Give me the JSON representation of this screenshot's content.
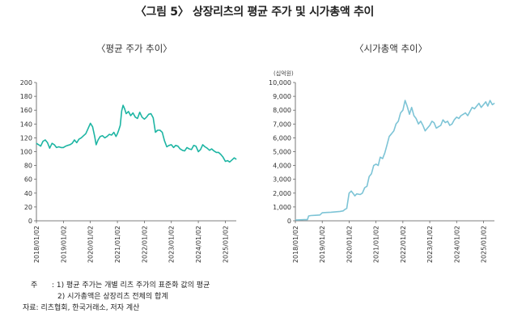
{
  "figure_title": "〈그림 5〉 상장리츠의 평균 주가 및 시가총액 추이",
  "chart_data": [
    {
      "type": "line",
      "title": "〈평균 주가 추이〉",
      "ylim": [
        0,
        200
      ],
      "y_ticks": [
        0,
        20,
        40,
        60,
        80,
        100,
        120,
        140,
        160,
        180,
        200
      ],
      "x_ticks": [
        "2018/01/02",
        "2019/01/02",
        "2020/01/02",
        "2021/01/02",
        "2022/01/02",
        "2023/01/02",
        "2024/01/02",
        "2025/01/02"
      ],
      "x_range": [
        "2018-01-02",
        "2025-05-30"
      ],
      "color": "#1db5a3",
      "series": [
        {
          "x": [
            "2018-01-02",
            "2018-02-01",
            "2018-03-01",
            "2018-04-01",
            "2018-05-01",
            "2018-06-01",
            "2018-07-01",
            "2018-08-01",
            "2018-09-01",
            "2018-10-01",
            "2018-11-01",
            "2018-12-01",
            "2019-01-02",
            "2019-02-01",
            "2019-03-01",
            "2019-04-01",
            "2019-05-01",
            "2019-06-01",
            "2019-07-01",
            "2019-08-01",
            "2019-09-01",
            "2019-10-01",
            "2019-11-01",
            "2019-12-01",
            "2020-01-02",
            "2020-02-01",
            "2020-03-01",
            "2020-03-20",
            "2020-04-15",
            "2020-05-15",
            "2020-06-15",
            "2020-07-15",
            "2020-08-15",
            "2020-09-15",
            "2020-10-15",
            "2020-11-15",
            "2020-12-15",
            "2021-01-02",
            "2021-01-20",
            "2021-02-10",
            "2021-03-01",
            "2021-03-20",
            "2021-04-10",
            "2021-05-01",
            "2021-06-01",
            "2021-07-01",
            "2021-08-01",
            "2021-09-01",
            "2021-10-01",
            "2021-11-01",
            "2021-12-01",
            "2022-01-02",
            "2022-02-01",
            "2022-03-01",
            "2022-04-01",
            "2022-05-01",
            "2022-06-01",
            "2022-07-01",
            "2022-08-01",
            "2022-09-01",
            "2022-10-01",
            "2022-11-01",
            "2022-12-01",
            "2023-01-02",
            "2023-02-01",
            "2023-03-01",
            "2023-04-01",
            "2023-05-01",
            "2023-06-01",
            "2023-07-01",
            "2023-08-01",
            "2023-09-01",
            "2023-10-01",
            "2023-11-01",
            "2023-12-01",
            "2024-01-02",
            "2024-02-01",
            "2024-03-01",
            "2024-04-01",
            "2024-05-01",
            "2024-06-01",
            "2024-07-01",
            "2024-08-01",
            "2024-09-01",
            "2024-10-01",
            "2024-11-01",
            "2024-12-01",
            "2025-01-02",
            "2025-02-01",
            "2025-03-01",
            "2025-04-01",
            "2025-05-01",
            "2025-05-30"
          ],
          "y": [
            112,
            110,
            108,
            115,
            117,
            113,
            105,
            112,
            110,
            106,
            107,
            106,
            106,
            108,
            109,
            110,
            112,
            117,
            113,
            118,
            120,
            123,
            126,
            133,
            141,
            136,
            122,
            110,
            117,
            122,
            123,
            120,
            122,
            125,
            124,
            128,
            122,
            126,
            131,
            138,
            159,
            167,
            162,
            155,
            158,
            152,
            156,
            150,
            148,
            157,
            150,
            147,
            150,
            154,
            155,
            149,
            128,
            131,
            131,
            128,
            116,
            107,
            109,
            110,
            106,
            109,
            108,
            104,
            102,
            101,
            106,
            104,
            103,
            109,
            108,
            100,
            103,
            110,
            107,
            105,
            102,
            104,
            101,
            99,
            99,
            96,
            92,
            86,
            87,
            85,
            88,
            91,
            89
          ]
        }
      ]
    },
    {
      "type": "line",
      "title": "〈시가총액 추이〉",
      "unit": "(십억원)",
      "ylim": [
        0,
        10000
      ],
      "y_ticks": [
        0,
        1000,
        2000,
        3000,
        4000,
        5000,
        6000,
        7000,
        8000,
        9000,
        10000
      ],
      "x_ticks": [
        "2018/01/02",
        "2019/01/02",
        "2020/01/02",
        "2021/01/02",
        "2022/01/02",
        "2023/01/02",
        "2024/01/02",
        "2025/01/02"
      ],
      "x_range": [
        "2018-01-02",
        "2025-05-30"
      ],
      "color": "#7dc4d6",
      "series": [
        {
          "x": [
            "2018-01-02",
            "2018-03-01",
            "2018-05-01",
            "2018-06-15",
            "2018-07-01",
            "2018-08-01",
            "2018-10-01",
            "2018-12-01",
            "2019-01-02",
            "2019-03-01",
            "2019-05-01",
            "2019-07-01",
            "2019-09-01",
            "2019-10-15",
            "2019-11-01",
            "2019-12-01",
            "2020-01-02",
            "2020-02-01",
            "2020-03-01",
            "2020-03-20",
            "2020-04-15",
            "2020-06-01",
            "2020-07-01",
            "2020-08-01",
            "2020-09-01",
            "2020-10-01",
            "2020-11-01",
            "2020-12-01",
            "2021-01-02",
            "2021-02-01",
            "2021-03-01",
            "2021-04-01",
            "2021-05-01",
            "2021-06-01",
            "2021-07-01",
            "2021-08-01",
            "2021-09-01",
            "2021-10-01",
            "2021-11-01",
            "2021-12-01",
            "2022-01-02",
            "2022-02-01",
            "2022-03-01",
            "2022-04-01",
            "2022-05-01",
            "2022-06-01",
            "2022-07-01",
            "2022-08-01",
            "2022-09-01",
            "2022-10-01",
            "2022-11-01",
            "2022-12-01",
            "2023-01-02",
            "2023-02-01",
            "2023-03-01",
            "2023-04-01",
            "2023-05-01",
            "2023-06-01",
            "2023-07-01",
            "2023-08-01",
            "2023-09-01",
            "2023-10-01",
            "2023-11-01",
            "2023-12-01",
            "2024-01-02",
            "2024-02-01",
            "2024-03-01",
            "2024-04-01",
            "2024-05-01",
            "2024-06-01",
            "2024-07-01",
            "2024-08-01",
            "2024-09-01",
            "2024-10-01",
            "2024-11-01",
            "2024-12-01",
            "2025-01-02",
            "2025-02-01",
            "2025-03-01",
            "2025-04-01",
            "2025-05-01",
            "2025-05-30"
          ],
          "y": [
            60,
            70,
            80,
            80,
            350,
            380,
            400,
            420,
            580,
            600,
            620,
            650,
            680,
            720,
            800,
            900,
            2000,
            2150,
            1950,
            1800,
            1950,
            1900,
            2000,
            2400,
            2500,
            3200,
            3400,
            4000,
            4100,
            4000,
            4600,
            4500,
            4900,
            5500,
            6100,
            6300,
            6500,
            7000,
            7200,
            7800,
            8000,
            8700,
            8300,
            7700,
            8200,
            7600,
            7400,
            7000,
            7200,
            6900,
            6500,
            6700,
            6900,
            7200,
            7100,
            6700,
            6800,
            6900,
            7300,
            7100,
            7200,
            6900,
            7000,
            7300,
            7500,
            7400,
            7600,
            7700,
            7800,
            7600,
            7900,
            8200,
            8100,
            8300,
            8500,
            8200,
            8400,
            8600,
            8300,
            8700,
            8400,
            8500
          ]
        }
      ]
    }
  ],
  "notes": {
    "lead": "주",
    "note1": ": 1) 평균 주가는 개별 리츠 주가의 표준화 값의 평균",
    "note2": "2) 시가총액은 상장리츠 전체의 합계",
    "source": "자료: 리츠협회, 한국거래소, 저자 계산"
  }
}
